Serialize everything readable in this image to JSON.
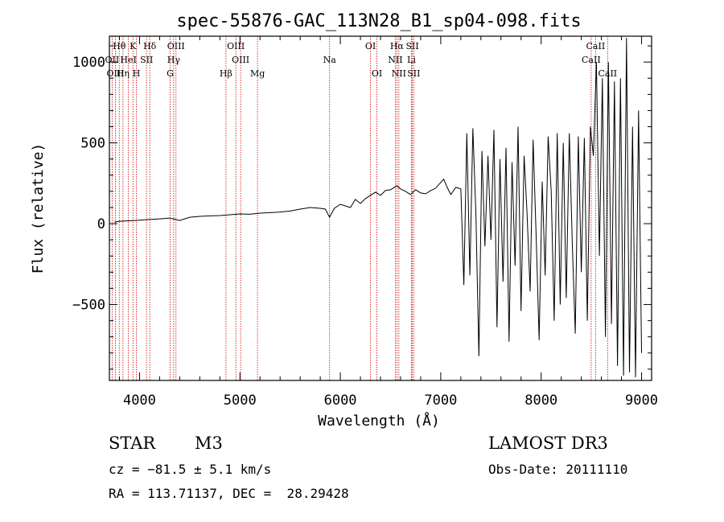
{
  "chart_data": {
    "type": "line",
    "title": "spec-55876-GAC_113N28_B1_sp04-098.fits",
    "xlabel": "Wavelength (Å)",
    "ylabel": "Flux (relative)",
    "xlim": [
      3700,
      9100
    ],
    "ylim": [
      -970,
      1160
    ],
    "xticks": [
      4000,
      5000,
      6000,
      7000,
      8000,
      9000
    ],
    "xtick_labels": [
      "4000",
      "5000",
      "6000",
      "7000",
      "8000",
      "9000"
    ],
    "yticks": [
      1000,
      500,
      0,
      -500
    ],
    "ytick_labels": [
      "1000",
      "500",
      "0",
      "−500"
    ],
    "series": [
      {
        "name": "flux",
        "x": [
          3750,
          3800,
          3900,
          4000,
          4100,
          4200,
          4300,
          4400,
          4500,
          4600,
          4700,
          4800,
          4900,
          5000,
          5100,
          5200,
          5300,
          5400,
          5500,
          5600,
          5700,
          5800,
          5850,
          5893,
          5940,
          6000,
          6050,
          6100,
          6150,
          6200,
          6250,
          6300,
          6350,
          6400,
          6450,
          6500,
          6563,
          6600,
          6650,
          6700,
          6750,
          6800,
          6850,
          6900,
          6950,
          7000,
          7030,
          7060,
          7100,
          7150,
          7200,
          7230,
          7260,
          7290,
          7320,
          7350,
          7380,
          7410,
          7440,
          7470,
          7500,
          7530,
          7560,
          7590,
          7620,
          7650,
          7680,
          7710,
          7740,
          7770,
          7800,
          7830,
          7860,
          7890,
          7920,
          7950,
          7980,
          8010,
          8040,
          8070,
          8100,
          8130,
          8160,
          8190,
          8220,
          8250,
          8280,
          8310,
          8340,
          8370,
          8400,
          8430,
          8460,
          8490,
          8520,
          8550,
          8580,
          8610,
          8640,
          8670,
          8700,
          8730,
          8760,
          8790,
          8820,
          8850,
          8880,
          8910,
          8940,
          8970,
          9000
        ],
        "y": [
          10,
          15,
          18,
          22,
          26,
          30,
          35,
          20,
          40,
          45,
          48,
          50,
          55,
          60,
          58,
          65,
          68,
          72,
          78,
          90,
          100,
          95,
          90,
          40,
          95,
          120,
          110,
          100,
          150,
          125,
          155,
          175,
          195,
          175,
          205,
          210,
          235,
          215,
          200,
          180,
          210,
          190,
          185,
          205,
          220,
          255,
          275,
          230,
          180,
          225,
          215,
          -380,
          560,
          -320,
          590,
          60,
          -820,
          450,
          -140,
          420,
          -100,
          580,
          -640,
          400,
          -360,
          470,
          -730,
          380,
          -260,
          600,
          -540,
          420,
          60,
          -420,
          520,
          -80,
          -720,
          260,
          -320,
          540,
          200,
          -600,
          560,
          -500,
          500,
          -460,
          560,
          -120,
          -680,
          540,
          -300,
          530,
          -600,
          600,
          420,
          1000,
          -200,
          900,
          -700,
          1000,
          -620,
          880,
          -880,
          900,
          -940,
          1150,
          -920,
          600,
          -950,
          700,
          -800
        ]
      }
    ],
    "line_markers": [
      {
        "name": "Hθ",
        "wavelength": 3798,
        "row": 0
      },
      {
        "name": "K",
        "wavelength": 3934,
        "row": 0
      },
      {
        "name": "Hδ",
        "wavelength": 4102,
        "row": 0
      },
      {
        "name": "OIII",
        "wavelength": 4363,
        "row": 0
      },
      {
        "name": "OIII",
        "wavelength": 4959,
        "row": 0
      },
      {
        "name": "OI",
        "wavelength": 6300,
        "row": 0
      },
      {
        "name": "Hα",
        "wavelength": 6563,
        "row": 0
      },
      {
        "name": "SII",
        "wavelength": 6717,
        "row": 0
      },
      {
        "name": "CaII",
        "wavelength": 8542,
        "row": 0
      },
      {
        "name": "OII",
        "wavelength": 3727,
        "row": 1
      },
      {
        "name": "HeI",
        "wavelength": 3889,
        "row": 1
      },
      {
        "name": "SII",
        "wavelength": 4070,
        "row": 1
      },
      {
        "name": "Hγ",
        "wavelength": 4340,
        "row": 1
      },
      {
        "name": "OIII",
        "wavelength": 5007,
        "row": 1
      },
      {
        "name": "Na",
        "wavelength": 5893,
        "row": 1
      },
      {
        "name": "NII",
        "wavelength": 6548,
        "row": 1
      },
      {
        "name": "Li",
        "wavelength": 6708,
        "row": 1
      },
      {
        "name": "CaII",
        "wavelength": 8498,
        "row": 1
      },
      {
        "name": "OIII",
        "wavelength": 3760,
        "row": 2
      },
      {
        "name": "Hη",
        "wavelength": 3835,
        "row": 2
      },
      {
        "name": "H",
        "wavelength": 3969,
        "row": 2
      },
      {
        "name": "G",
        "wavelength": 4305,
        "row": 2
      },
      {
        "name": "Hβ",
        "wavelength": 4861,
        "row": 2
      },
      {
        "name": "Mg",
        "wavelength": 5175,
        "row": 2
      },
      {
        "name": "OI",
        "wavelength": 6364,
        "row": 2
      },
      {
        "name": "NII",
        "wavelength": 6583,
        "row": 2
      },
      {
        "name": "SII",
        "wavelength": 6731,
        "row": 2
      },
      {
        "name": "CaII",
        "wavelength": 8662,
        "row": 2
      }
    ]
  },
  "info": {
    "object_class": "STAR",
    "subclass": "M3",
    "survey": "LAMOST DR3",
    "cz": "cz = −81.5 ± 5.1 km/s",
    "obs_date": "Obs-Date: 20111110",
    "coords": "RA = 113.71137, DEC =  28.29428"
  },
  "colors": {
    "line_marker": "#cc0000",
    "spectrum": "#000000"
  }
}
